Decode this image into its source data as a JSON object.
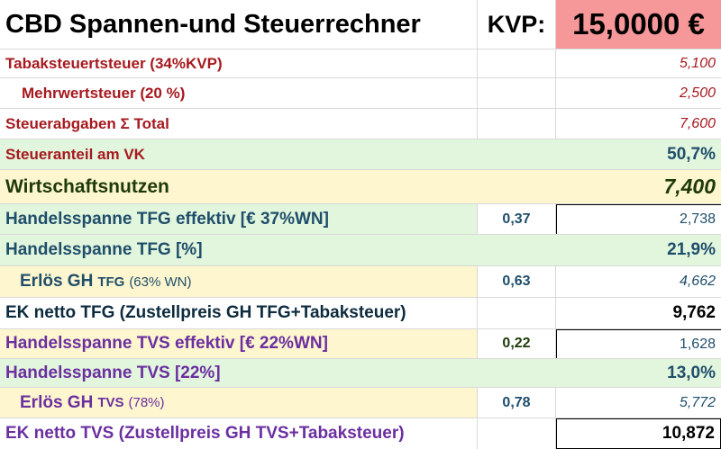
{
  "title": "CBD Spannen-und Steuerrechner",
  "kvp_label": "KVP:",
  "kvp_value": "15,0000 €",
  "rows": [
    {
      "label": "Tabaksteuertsteuer (34%KVP)",
      "factor": "",
      "value": "5,100"
    },
    {
      "label": "Mehrwertsteuer (20 %)",
      "factor": "",
      "value": "2,500"
    },
    {
      "label": "Steuerabgaben  Σ Total",
      "factor": "",
      "value": "7,600"
    },
    {
      "label": "Steueranteil am VK",
      "factor": "",
      "value": "50,7%"
    },
    {
      "label": "Wirtschaftsnutzen",
      "factor": "",
      "value": "7,400"
    },
    {
      "label": "Handelsspanne TFG effektiv [€ 37%WN]",
      "factor": "0,37",
      "value": "2,738"
    },
    {
      "label": "Handelsspanne TFG [%]",
      "factor": "",
      "value": "21,9%"
    },
    {
      "label": "Erlös GH",
      "label_small": "TFG",
      "label_note": "(63% WN)",
      "factor": "0,63",
      "value": "4,662"
    },
    {
      "label": "EK netto TFG (Zustellpreis GH TFG+Tabaksteuer)",
      "factor": "",
      "value": "9,762"
    },
    {
      "label": "Handelsspanne TVS effektiv [€ 22%WN]",
      "factor": "0,22",
      "value": "1,628"
    },
    {
      "label": "Handelsspanne TVS [22%]",
      "factor": "",
      "value": "13,0%"
    },
    {
      "label": "Erlös GH",
      "label_small": "TVS",
      "label_note": "(78%)",
      "factor": "0,78",
      "value": "5,772"
    },
    {
      "label": "EK netto TVS (Zustellpreis GH TVS+Tabaksteuer)",
      "factor": "",
      "value": "10,872"
    }
  ]
}
